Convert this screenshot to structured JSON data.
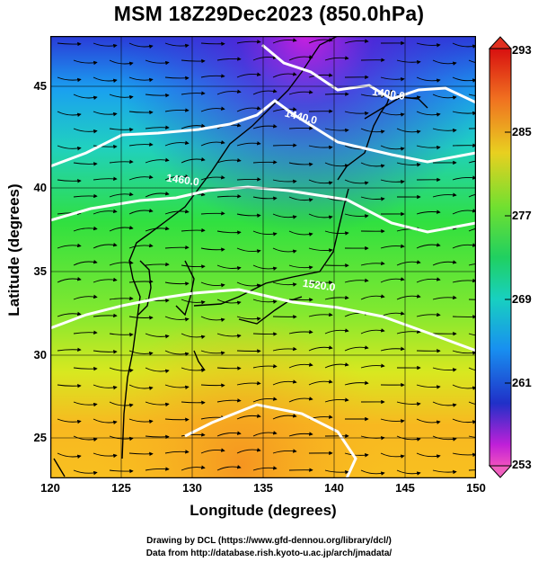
{
  "title": "MSM 18Z29Dec2023 (850.0hPa)",
  "x_axis": {
    "label": "Longitude (degrees)",
    "ticks": [
      "120",
      "125",
      "130",
      "135",
      "140",
      "145",
      "150"
    ],
    "range": [
      120,
      150
    ]
  },
  "y_axis": {
    "label": "Latitude  (degrees)",
    "ticks": [
      "25",
      "30",
      "35",
      "40",
      "45"
    ],
    "range": [
      22.4,
      47.6
    ]
  },
  "colorbar": {
    "ticks": [
      "293",
      "285",
      "277",
      "269",
      "261",
      "253"
    ],
    "range": [
      253,
      293
    ]
  },
  "contours": [
    {
      "label": "1400.0",
      "lon": 143.8,
      "lat": 44.1
    },
    {
      "label": "1440.0",
      "lon": 137.6,
      "lat": 42.8
    },
    {
      "label": "1460.0",
      "lon": 129.3,
      "lat": 39.2
    },
    {
      "label": "1520.0",
      "lon": 138.9,
      "lat": 33.2
    }
  ],
  "colors": {
    "cold": "#d01fe0",
    "mid": "#2ee83c",
    "warm": "#f7b020",
    "contour": "#ffffff"
  },
  "credits": {
    "line1": "Drawing by DCL (https://www.gfd-dennou.org/library/dcl/)",
    "line2": "Data from http://database.rish.kyoto-u.ac.jp/arch/jmadata/"
  }
}
